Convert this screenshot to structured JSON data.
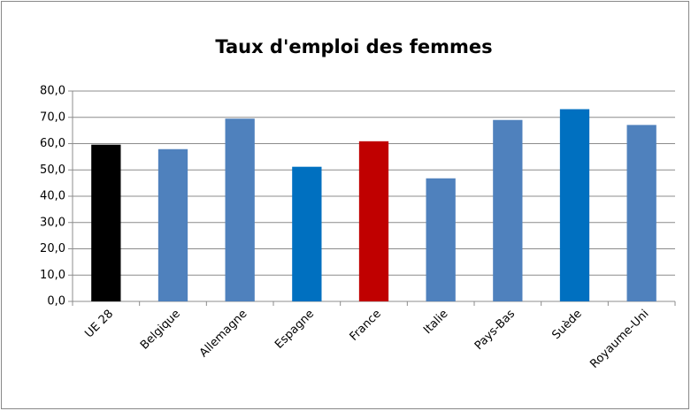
{
  "chart_data": {
    "type": "bar",
    "title": "Taux d'emploi des femmes",
    "categories": [
      "UE 28",
      "Belgique",
      "Allemagne",
      "Espagne",
      "France",
      "Italie",
      "Pays-Bas",
      "Suède",
      "Royaume-Uni"
    ],
    "values": [
      59.6,
      57.9,
      69.5,
      51.2,
      60.9,
      46.8,
      69.0,
      73.1,
      67.1
    ],
    "colors": [
      "#000000",
      "#4f81bd",
      "#4f81bd",
      "#0070c0",
      "#c00000",
      "#4f81bd",
      "#4f81bd",
      "#0070c0",
      "#4f81bd"
    ],
    "ylim": [
      0,
      80
    ],
    "yticks": [
      {
        "value": 0,
        "label": "0,0"
      },
      {
        "value": 10,
        "label": "10,0"
      },
      {
        "value": 20,
        "label": "20,0"
      },
      {
        "value": 30,
        "label": "30,0"
      },
      {
        "value": 40,
        "label": "40,0"
      },
      {
        "value": 50,
        "label": "50,0"
      },
      {
        "value": 60,
        "label": "60,0"
      },
      {
        "value": 70,
        "label": "70,0"
      },
      {
        "value": 80,
        "label": "80,0"
      }
    ],
    "grid": true
  }
}
